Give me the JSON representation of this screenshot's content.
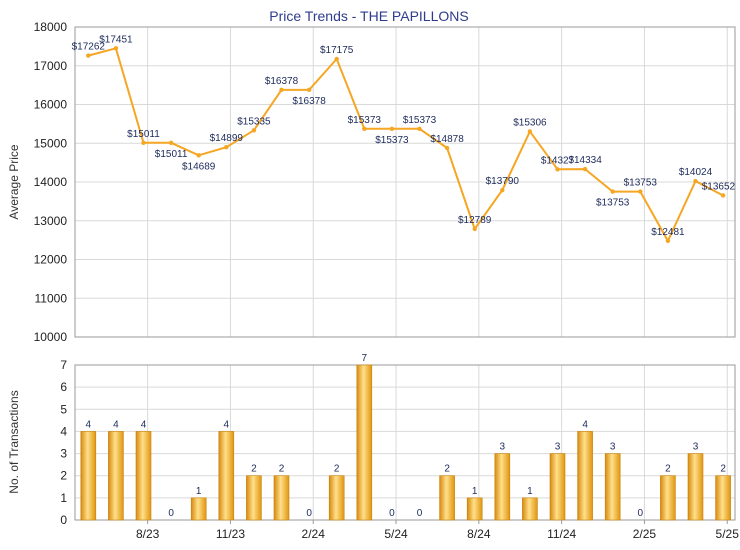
{
  "chart_data": [
    {
      "type": "line",
      "title": "Price Trends - THE PAPILLONS",
      "ylabel": "Average Price",
      "ylim": [
        10000,
        18000
      ],
      "yticks": [
        "10000",
        "11000",
        "12000",
        "13000",
        "14000",
        "15000",
        "16000",
        "17000",
        "18000"
      ],
      "grid": true,
      "color": "#f5a623",
      "values": [
        17262,
        17451,
        15011,
        15011,
        14689,
        14899,
        15335,
        16378,
        16378,
        17175,
        15373,
        15373,
        15373,
        14878,
        12789,
        13790,
        15306,
        14327,
        14334,
        13753,
        13753,
        12481,
        14024,
        13652
      ],
      "labels": [
        "$17262",
        "$17451",
        "$15011",
        "$15011",
        "$14689",
        "$14899",
        "$15335",
        "$16378",
        "$16378",
        "$17175",
        "$15373",
        "$15373",
        "$15373",
        "$14878",
        "$12789",
        "$13790",
        "$15306",
        "$14327",
        "$14334",
        "$13753",
        "$13753",
        "$12481",
        "$14024",
        "$13652"
      ],
      "point_index": [
        0,
        1,
        2,
        3,
        4,
        5,
        6,
        7,
        8,
        9,
        10,
        11,
        12,
        13,
        14,
        15,
        16,
        17,
        18,
        19,
        20,
        21,
        22,
        23
      ],
      "point_slot": [
        0,
        1,
        2,
        3,
        4,
        5,
        6,
        7,
        8,
        9,
        10,
        11,
        12,
        13,
        14,
        15,
        16,
        17,
        18,
        19,
        20,
        21,
        22,
        23
      ]
    },
    {
      "type": "bar",
      "ylabel": "No. of Transactions",
      "ylim": [
        0,
        7
      ],
      "yticks": [
        "0",
        "1",
        "2",
        "3",
        "4",
        "5",
        "6",
        "7"
      ],
      "grid": true,
      "color": "#f5a623",
      "values": [
        4,
        4,
        4,
        0,
        1,
        4,
        2,
        2,
        0,
        2,
        7,
        0,
        0,
        2,
        1,
        3,
        1,
        3,
        4,
        3,
        0,
        2,
        3,
        2
      ]
    }
  ],
  "x_axis": {
    "tick_labels": [
      "8/23",
      "11/23",
      "2/24",
      "5/24",
      "8/24",
      "11/24",
      "2/25",
      "5/25"
    ]
  }
}
